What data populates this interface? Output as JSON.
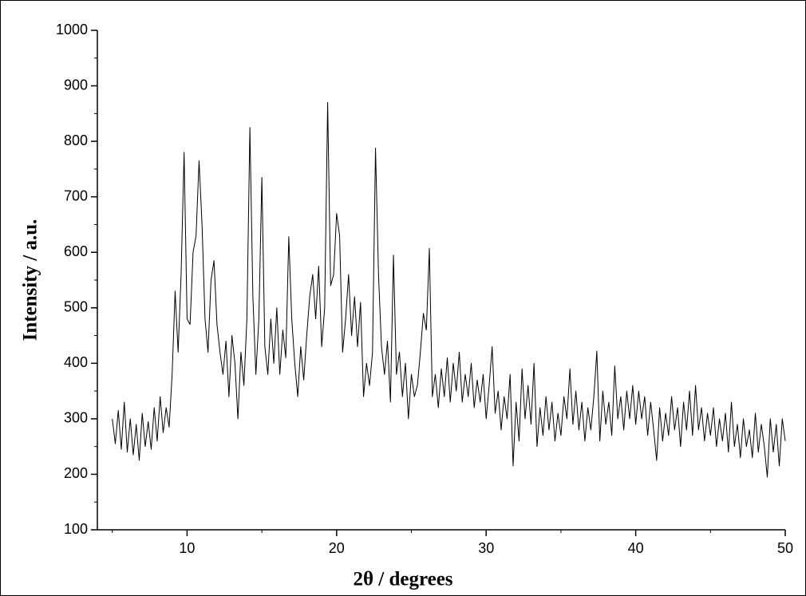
{
  "chart_data": {
    "type": "line",
    "xlabel": "2θ / degrees",
    "ylabel": "Intensity / a.u.",
    "color": "#000000",
    "xlim": [
      4,
      50
    ],
    "xticks": [
      10,
      20,
      30,
      40,
      50
    ],
    "ylim": [
      100,
      1000
    ],
    "yticks": [
      100,
      200,
      300,
      400,
      500,
      600,
      700,
      800,
      900,
      1000
    ],
    "grid": false,
    "x": [
      5.0,
      5.2,
      5.4,
      5.6,
      5.8,
      6.0,
      6.2,
      6.4,
      6.6,
      6.8,
      7.0,
      7.2,
      7.4,
      7.6,
      7.8,
      8.0,
      8.2,
      8.4,
      8.6,
      8.8,
      9.0,
      9.2,
      9.4,
      9.6,
      9.8,
      10.0,
      10.2,
      10.4,
      10.6,
      10.8,
      11.0,
      11.2,
      11.4,
      11.6,
      11.8,
      12.0,
      12.2,
      12.4,
      12.6,
      12.8,
      13.0,
      13.2,
      13.4,
      13.6,
      13.8,
      14.0,
      14.2,
      14.4,
      14.6,
      14.8,
      15.0,
      15.2,
      15.4,
      15.6,
      15.8,
      16.0,
      16.2,
      16.4,
      16.6,
      16.8,
      17.0,
      17.2,
      17.4,
      17.6,
      17.8,
      18.0,
      18.2,
      18.4,
      18.6,
      18.8,
      19.0,
      19.2,
      19.4,
      19.6,
      19.8,
      20.0,
      20.2,
      20.4,
      20.6,
      20.8,
      21.0,
      21.2,
      21.4,
      21.6,
      21.8,
      22.0,
      22.2,
      22.4,
      22.6,
      22.8,
      23.0,
      23.2,
      23.4,
      23.6,
      23.8,
      24.0,
      24.2,
      24.4,
      24.6,
      24.8,
      25.0,
      25.2,
      25.4,
      25.6,
      25.8,
      26.0,
      26.2,
      26.4,
      26.6,
      26.8,
      27.0,
      27.2,
      27.4,
      27.6,
      27.8,
      28.0,
      28.2,
      28.4,
      28.6,
      28.8,
      29.0,
      29.2,
      29.4,
      29.6,
      29.8,
      30.0,
      30.2,
      30.4,
      30.6,
      30.8,
      31.0,
      31.2,
      31.4,
      31.6,
      31.8,
      32.0,
      32.2,
      32.4,
      32.6,
      32.8,
      33.0,
      33.2,
      33.4,
      33.6,
      33.8,
      34.0,
      34.2,
      34.4,
      34.6,
      34.8,
      35.0,
      35.2,
      35.4,
      35.6,
      35.8,
      36.0,
      36.2,
      36.4,
      36.6,
      36.8,
      37.0,
      37.2,
      37.4,
      37.6,
      37.8,
      38.0,
      38.2,
      38.4,
      38.6,
      38.8,
      39.0,
      39.2,
      39.4,
      39.6,
      39.8,
      40.0,
      40.2,
      40.4,
      40.6,
      40.8,
      41.0,
      41.2,
      41.4,
      41.6,
      41.8,
      42.0,
      42.2,
      42.4,
      42.6,
      42.8,
      43.0,
      43.2,
      43.4,
      43.6,
      43.8,
      44.0,
      44.2,
      44.4,
      44.6,
      44.8,
      45.0,
      45.2,
      45.4,
      45.6,
      45.8,
      46.0,
      46.2,
      46.4,
      46.6,
      46.8,
      47.0,
      47.2,
      47.4,
      47.6,
      47.8,
      48.0,
      48.2,
      48.4,
      48.6,
      48.8,
      49.0,
      49.2,
      49.4,
      49.6,
      49.8,
      50.0
    ],
    "values": [
      300,
      255,
      315,
      245,
      330,
      240,
      300,
      235,
      290,
      225,
      310,
      250,
      295,
      245,
      320,
      260,
      340,
      275,
      320,
      285,
      380,
      530,
      420,
      560,
      780,
      480,
      470,
      600,
      630,
      765,
      650,
      480,
      420,
      550,
      585,
      470,
      420,
      380,
      440,
      340,
      450,
      400,
      300,
      420,
      360,
      480,
      825,
      520,
      380,
      480,
      735,
      430,
      380,
      480,
      400,
      500,
      380,
      460,
      410,
      628,
      480,
      400,
      340,
      430,
      370,
      450,
      520,
      560,
      480,
      575,
      430,
      500,
      870,
      540,
      560,
      670,
      630,
      420,
      480,
      560,
      450,
      520,
      430,
      510,
      340,
      400,
      360,
      420,
      788,
      560,
      430,
      380,
      440,
      330,
      595,
      380,
      420,
      340,
      400,
      300,
      380,
      340,
      360,
      420,
      490,
      460,
      607,
      340,
      380,
      320,
      390,
      340,
      410,
      330,
      400,
      350,
      420,
      330,
      380,
      340,
      400,
      320,
      370,
      330,
      380,
      300,
      360,
      430,
      310,
      350,
      280,
      340,
      300,
      380,
      215,
      330,
      260,
      390,
      300,
      360,
      290,
      400,
      250,
      320,
      270,
      340,
      280,
      330,
      260,
      310,
      270,
      340,
      300,
      390,
      290,
      350,
      280,
      330,
      260,
      320,
      280,
      340,
      422,
      260,
      350,
      290,
      330,
      270,
      395,
      300,
      340,
      280,
      350,
      300,
      360,
      290,
      350,
      300,
      340,
      270,
      330,
      280,
      225,
      320,
      260,
      310,
      270,
      340,
      280,
      320,
      250,
      330,
      280,
      350,
      270,
      360,
      280,
      320,
      260,
      310,
      270,
      320,
      250,
      300,
      260,
      310,
      240,
      330,
      250,
      290,
      230,
      300,
      250,
      280,
      230,
      310,
      240,
      290,
      250,
      195,
      300,
      240,
      290,
      215,
      300,
      260
    ]
  }
}
